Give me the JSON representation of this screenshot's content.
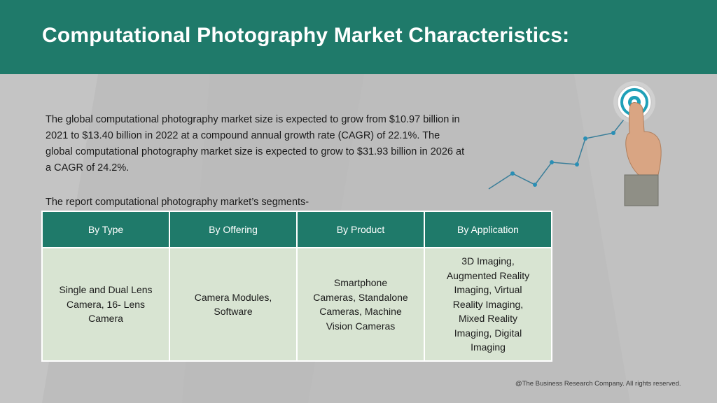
{
  "header": {
    "title": "Computational Photography Market Characteristics:"
  },
  "intro": {
    "text": "The global computational photography market size is expected to grow from $10.97 billion in 2021 to $13.40 billion in 2022 at a compound annual growth rate (CAGR) of 22.1%. The global computational photography market size is expected to grow to $31.93 billion in 2026 at a CAGR of 24.2%."
  },
  "segments": {
    "label": "The report computational photography market’s segments-",
    "columns": [
      {
        "header": "By Type",
        "value": "Single and Dual Lens\nCamera, 16- Lens\nCamera"
      },
      {
        "header": "By Offering",
        "value": "Camera Modules,\nSoftware"
      },
      {
        "header": "By Product",
        "value": "Smartphone\nCameras, Standalone\nCameras, Machine\nVision Cameras"
      },
      {
        "header": "By Application",
        "value": "3D Imaging,\nAugmented Reality\nImaging, Virtual\nReality Imaging,\nMixed Reality\nImaging, Digital\nImaging"
      }
    ]
  },
  "graphic": {
    "icons": [
      "growth-line-chart-icon",
      "target-icon",
      "pointing-hand-icon"
    ],
    "colors": {
      "line": "#3a7e99",
      "dots": "#2a8fb5",
      "target": "#1fa0b8"
    }
  },
  "footer": {
    "copyright": "@The Business Research Company. All rights reserved."
  }
}
